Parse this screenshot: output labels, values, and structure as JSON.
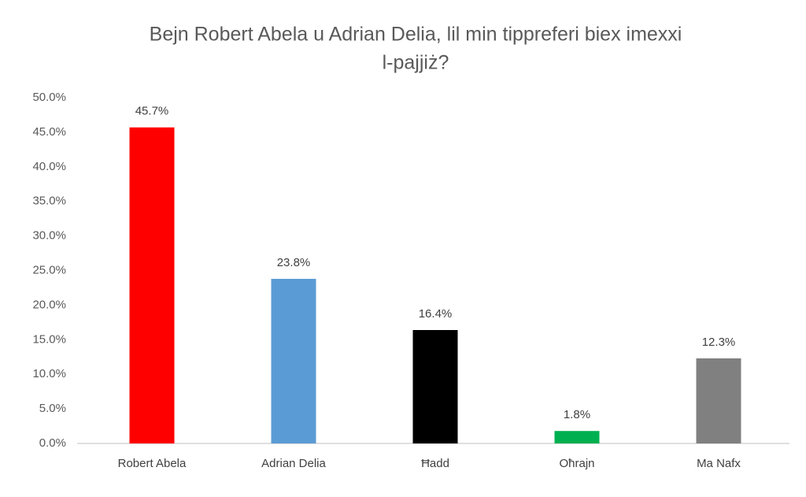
{
  "chart_data": {
    "type": "bar",
    "title": [
      "Bejn Robert Abela u Adrian Delia, lil min tippreferi biex imexxi",
      "l-pajjiż?"
    ],
    "categories": [
      "Robert Abela",
      "Adrian Delia",
      "Ħadd",
      "Oħrajn",
      "Ma Nafx"
    ],
    "values": [
      45.7,
      23.8,
      16.4,
      1.8,
      12.3
    ],
    "value_labels": [
      "45.7%",
      "23.8%",
      "16.4%",
      "1.8%",
      "12.3%"
    ],
    "colors": [
      "#ff0000",
      "#5b9bd5",
      "#000000",
      "#00b050",
      "#808080"
    ],
    "ylim": [
      0,
      50
    ],
    "yticks": [
      {
        "value": 0,
        "label": "0.0%"
      },
      {
        "value": 5,
        "label": "5.0%"
      },
      {
        "value": 10,
        "label": "10.0%"
      },
      {
        "value": 15,
        "label": "15.0%"
      },
      {
        "value": 20,
        "label": "20.0%"
      },
      {
        "value": 25,
        "label": "25.0%"
      },
      {
        "value": 30,
        "label": "30.0%"
      },
      {
        "value": 35,
        "label": "35.0%"
      },
      {
        "value": 40,
        "label": "40.0%"
      },
      {
        "value": 45,
        "label": "45.0%"
      },
      {
        "value": 50,
        "label": "50.0%"
      }
    ],
    "grid": false
  }
}
